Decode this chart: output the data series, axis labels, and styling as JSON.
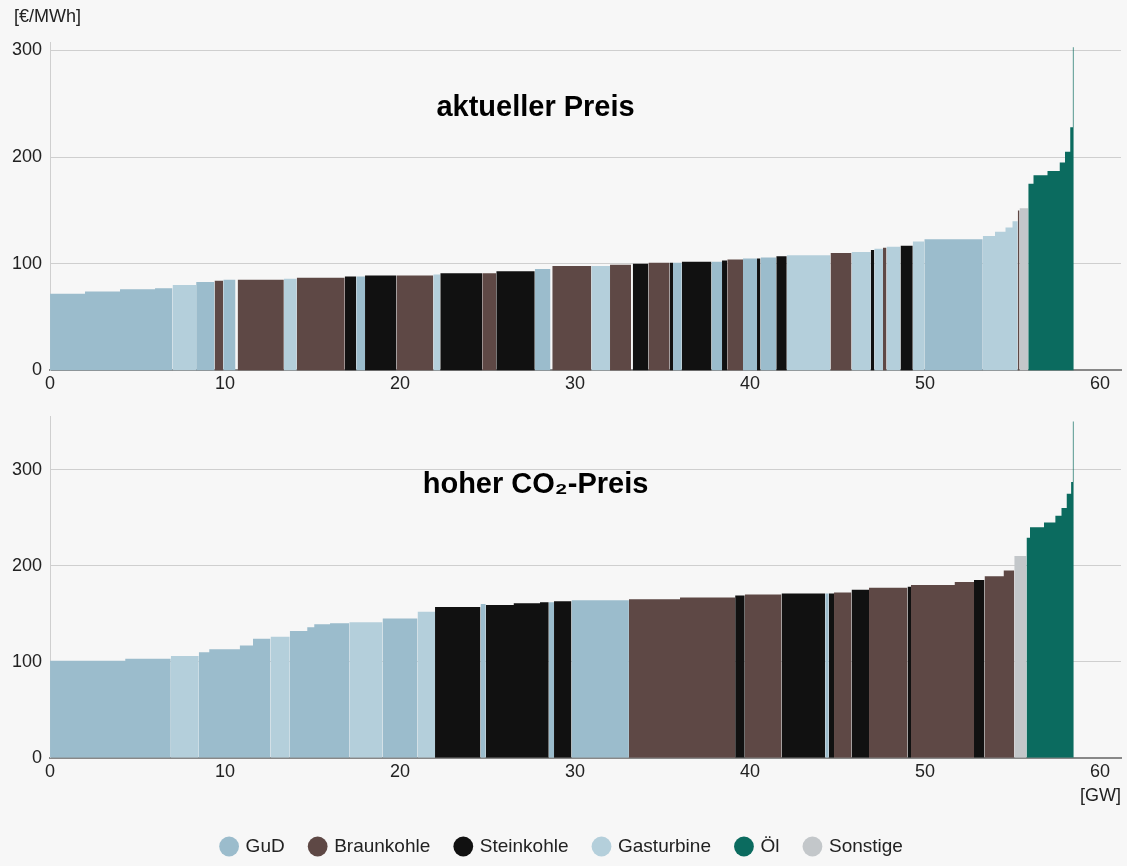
{
  "chart_data": [
    {
      "type": "area",
      "title": "aktueller Preis",
      "ylabel": "[€/MWh]",
      "xlim": [
        0,
        61.2
      ],
      "xticks": [
        0,
        10,
        20,
        30,
        40,
        50,
        60
      ],
      "ylim": [
        0,
        308
      ],
      "yticks": [
        0,
        100,
        200,
        300
      ],
      "grid": "y",
      "legend": false,
      "series": [
        {
          "color": "#9bbccc",
          "x": [
            0,
            2,
            2,
            4,
            4,
            6,
            6,
            7,
            null,
            8.35,
            9.4,
            null,
            9.9,
            10.6,
            null,
            17.5,
            18,
            null,
            27.7,
            28.6,
            null,
            35.6,
            36.1,
            null,
            37.8,
            38.4,
            null,
            39.6,
            40.4,
            null,
            40.6,
            41.5,
            null,
            49.96,
            53.3
          ],
          "values": [
            72,
            72,
            74,
            74,
            76,
            76,
            77,
            77,
            null,
            83,
            83,
            null,
            85,
            85,
            null,
            88,
            88,
            null,
            95,
            95,
            null,
            101,
            101,
            null,
            102,
            102,
            null,
            105,
            105,
            null,
            106,
            106,
            null,
            123,
            123
          ]
        },
        {
          "color": "#5e4845",
          "x": [
            9.4,
            9.9,
            null,
            10.72,
            13.36,
            null,
            14.1,
            16.84,
            null,
            19.8,
            21.9,
            null,
            24.7,
            25.5,
            null,
            28.7,
            30.93,
            null,
            32,
            33.2,
            null,
            34.2,
            35.4,
            null,
            38.7,
            39.6,
            null,
            44.6,
            45.8,
            null,
            47.6,
            47.8,
            null,
            55.3,
            55.4
          ],
          "values": [
            84,
            84,
            null,
            85,
            85,
            null,
            87,
            87,
            null,
            89,
            89,
            null,
            91,
            91,
            null,
            98,
            98,
            null,
            99,
            99,
            null,
            101,
            101,
            null,
            104,
            104,
            null,
            110,
            110,
            null,
            115,
            115,
            null,
            150,
            150
          ]
        },
        {
          "color": "#111111",
          "x": [
            16.84,
            17.5,
            null,
            18,
            19.8,
            null,
            22.3,
            24.7,
            null,
            25.5,
            27.7,
            null,
            33.3,
            34.2,
            null,
            35.4,
            35.6,
            null,
            36.1,
            37.8,
            null,
            38.4,
            38.7,
            null,
            40.4,
            40.6,
            null,
            41.5,
            42.1,
            null,
            46.9,
            47.1,
            null,
            48.6,
            49.3
          ],
          "values": [
            88,
            88,
            null,
            89,
            89,
            null,
            91,
            91,
            null,
            93,
            93,
            null,
            100,
            100,
            null,
            101,
            101,
            null,
            102,
            102,
            null,
            103,
            103,
            null,
            105,
            105,
            null,
            107,
            107,
            null,
            113,
            113,
            null,
            117,
            117
          ]
        },
        {
          "color": "#b4cfdb",
          "x": [
            7,
            8.35,
            null,
            13.36,
            14.1,
            null,
            21.9,
            22.3,
            null,
            30.93,
            32,
            null,
            42.1,
            44.6,
            null,
            45.8,
            46.9,
            null,
            47.1,
            47.6,
            null,
            47.8,
            48.6,
            null,
            49.3,
            49.96,
            null,
            53.3,
            54,
            54,
            54.6,
            54.6,
            55,
            55,
            55.3
          ],
          "values": [
            80,
            80,
            null,
            86,
            86,
            null,
            90,
            90,
            null,
            98,
            98,
            null,
            108,
            108,
            null,
            111,
            111,
            null,
            114,
            114,
            null,
            116,
            116,
            null,
            121,
            121,
            null,
            126,
            126,
            130,
            130,
            134,
            134,
            140,
            140
          ]
        },
        {
          "color": "#0b6b5f",
          "x": [
            55.9,
            56.2,
            56.2,
            57,
            57,
            57.7,
            57.7,
            58,
            58,
            58.3,
            58.3,
            58.45,
            58.45,
            58.5
          ],
          "values": [
            175,
            175,
            183,
            183,
            187,
            187,
            195,
            195,
            205,
            205,
            228,
            228,
            303,
            303
          ]
        },
        {
          "color": "#c3c7ca",
          "x": [
            55.4,
            55.9
          ],
          "values": [
            152,
            152
          ]
        }
      ]
    },
    {
      "type": "area",
      "title": "hoher CO₂-Preis",
      "xlabel": "[GW]",
      "xlim": [
        0,
        61.2
      ],
      "xticks": [
        0,
        10,
        20,
        30,
        40,
        50,
        60
      ],
      "ylim": [
        0,
        355
      ],
      "yticks": [
        0,
        100,
        200,
        300
      ],
      "grid": "y",
      "legend": "bottom",
      "series": [
        {
          "name": "GuD",
          "color": "#9bbccc",
          "x": [
            0,
            4.3,
            4.3,
            6.9,
            null,
            8.5,
            9.1,
            9.1,
            10.85,
            10.85,
            11.6,
            11.6,
            12.6,
            null,
            13.7,
            14.7,
            14.7,
            15.1,
            15.1,
            16,
            16,
            17.1,
            null,
            19,
            21,
            null,
            24.6,
            24.9,
            null,
            28.5,
            28.8,
            null,
            29.8,
            33.08,
            null,
            44.3,
            44.5
          ],
          "values": [
            101,
            101,
            103,
            103,
            null,
            110,
            110,
            113,
            113,
            117,
            117,
            124,
            124,
            null,
            132,
            132,
            136,
            136,
            139,
            139,
            140,
            140,
            null,
            145,
            145,
            null,
            160,
            160,
            null,
            162,
            162,
            null,
            164,
            164,
            null,
            171,
            171
          ]
        },
        {
          "name": "Braunkohle",
          "color": "#5e4845",
          "x": [
            33.08,
            36,
            36,
            39.15,
            null,
            39.7,
            41.8,
            null,
            44.8,
            45.8,
            null,
            46.8,
            49,
            null,
            49.2,
            51.7,
            51.7,
            52.8,
            null,
            53.4,
            54.5,
            54.5,
            55.1
          ],
          "values": [
            165,
            165,
            167,
            167,
            null,
            170,
            170,
            null,
            172,
            172,
            null,
            177,
            177,
            null,
            180,
            180,
            183,
            183,
            null,
            189,
            189,
            195,
            195
          ]
        },
        {
          "name": "Steinkohle",
          "color": "#111111",
          "x": [
            22,
            24.6,
            null,
            24.9,
            26.5,
            26.5,
            28,
            28,
            28.5,
            null,
            28.8,
            29.8,
            null,
            39.15,
            39.7,
            null,
            41.8,
            44.3,
            null,
            44.5,
            44.8,
            null,
            45.8,
            46.8,
            null,
            49,
            49.2,
            null,
            52.8,
            53.4
          ],
          "values": [
            157,
            157,
            null,
            159,
            159,
            161,
            161,
            162,
            162,
            null,
            163,
            163,
            null,
            169,
            169,
            null,
            171,
            171,
            null,
            171,
            171,
            null,
            175,
            175,
            null,
            178,
            178,
            null,
            185,
            185
          ]
        },
        {
          "name": "Gasturbine",
          "color": "#b4cfdb",
          "x": [
            6.9,
            8.5,
            null,
            12.6,
            13.7,
            null,
            17.1,
            19,
            null,
            21,
            22
          ],
          "values": [
            106,
            106,
            null,
            126,
            126,
            null,
            141,
            141,
            null,
            152,
            152
          ]
        },
        {
          "name": "Öl",
          "color": "#0b6b5f",
          "x": [
            55.8,
            56,
            56,
            56.8,
            56.8,
            57.45,
            57.45,
            57.8,
            57.8,
            58.1,
            58.1,
            58.35,
            58.35,
            58.45,
            58.45,
            58.5
          ],
          "values": [
            229,
            229,
            240,
            240,
            245,
            245,
            252,
            252,
            260,
            260,
            275,
            275,
            287,
            287,
            350,
            350
          ]
        },
        {
          "name": "Sonstige",
          "color": "#c3c7ca",
          "x": [
            55.1,
            55.8
          ],
          "values": [
            210,
            210
          ]
        }
      ]
    }
  ]
}
